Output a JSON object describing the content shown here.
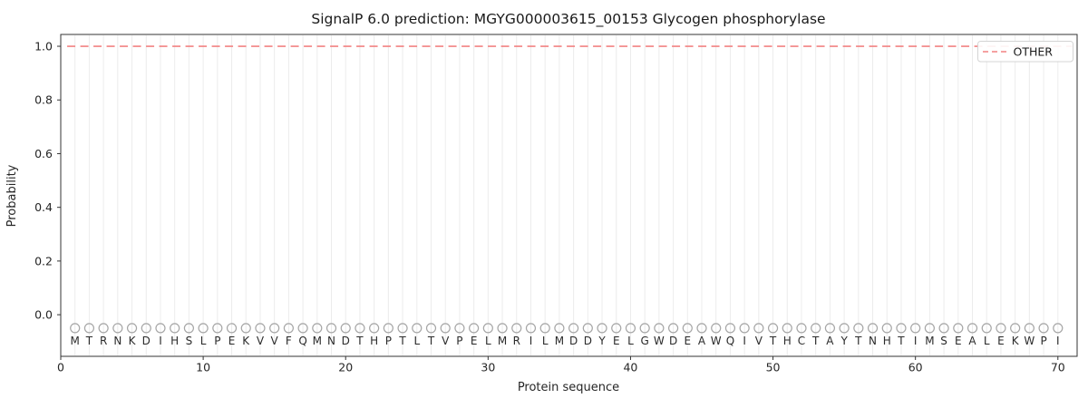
{
  "title": "SignalP 6.0 prediction: MGYG000003615_00153 Glycogen phosphorylase",
  "chart_data": {
    "type": "line",
    "title": "SignalP 6.0 prediction: MGYG000003615_00153 Glycogen phosphorylase",
    "xlabel": "Protein sequence",
    "ylabel": "Probability",
    "xlim": [
      0,
      71.35
    ],
    "ylim": [
      -0.155,
      1.044
    ],
    "grid": "vertical-per-residue",
    "x_ticks": [
      {
        "value": 0,
        "label": "0"
      },
      {
        "value": 10,
        "label": "10"
      },
      {
        "value": 20,
        "label": "20"
      },
      {
        "value": 30,
        "label": "30"
      },
      {
        "value": 40,
        "label": "40"
      },
      {
        "value": 50,
        "label": "50"
      },
      {
        "value": 60,
        "label": "60"
      },
      {
        "value": 70,
        "label": "70"
      }
    ],
    "y_ticks": [
      {
        "value": 0.0,
        "label": "0.0"
      },
      {
        "value": 0.2,
        "label": "0.2"
      },
      {
        "value": 0.4,
        "label": "0.4"
      },
      {
        "value": 0.6,
        "label": "0.6"
      },
      {
        "value": 0.8,
        "label": "0.8"
      },
      {
        "value": 1.0,
        "label": "1.0"
      }
    ],
    "series": [
      {
        "name": "OTHER",
        "style": "dashed",
        "color": "#f28282",
        "y_constant": 1.0,
        "x_start": 0.45,
        "x_end": 71.0
      }
    ],
    "legend": {
      "position": "upper right",
      "entries": [
        {
          "label": "OTHER",
          "color": "#f28282",
          "style": "dashed"
        }
      ]
    },
    "sequence": [
      "M",
      "T",
      "R",
      "N",
      "K",
      "D",
      "I",
      "H",
      "S",
      "L",
      "P",
      "E",
      "K",
      "V",
      "V",
      "F",
      "Q",
      "M",
      "N",
      "D",
      "T",
      "H",
      "P",
      "T",
      "L",
      "T",
      "V",
      "P",
      "E",
      "L",
      "M",
      "R",
      "I",
      "L",
      "M",
      "D",
      "D",
      "Y",
      "E",
      "L",
      "G",
      "W",
      "D",
      "E",
      "A",
      "W",
      "Q",
      "I",
      "V",
      "T",
      "H",
      "C",
      "T",
      "A",
      "Y",
      "T",
      "N",
      "H",
      "T",
      "I",
      "M",
      "S",
      "E",
      "A",
      "L",
      "E",
      "K",
      "W",
      "P",
      "I"
    ],
    "marker_row": {
      "symbol": "circle-open",
      "y": -0.05,
      "color": "#a6a6a6",
      "radius": 5
    }
  },
  "colors": {
    "line_other": "#f28282",
    "grid": "#ececec",
    "marker": "#a6a6a6",
    "spine": "#333333",
    "tick": "#333333",
    "text": "#262626",
    "legend_border": "#d4d4d4",
    "background": "#ffffff"
  }
}
